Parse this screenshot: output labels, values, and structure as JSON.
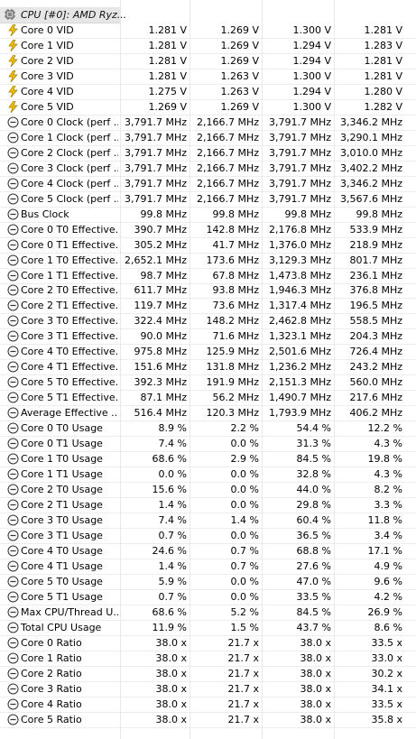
{
  "header": {
    "title": "CPU [#0]: AMD Ryz..."
  },
  "rows": [
    {
      "icon": "bolt",
      "label": "Core 0 VID",
      "values": [
        "1.281 V",
        "1.269 V",
        "1.300 V",
        "1.281 V"
      ]
    },
    {
      "icon": "bolt",
      "label": "Core 1 VID",
      "values": [
        "1.281 V",
        "1.269 V",
        "1.294 V",
        "1.283 V"
      ]
    },
    {
      "icon": "bolt",
      "label": "Core 2 VID",
      "values": [
        "1.281 V",
        "1.269 V",
        "1.294 V",
        "1.281 V"
      ]
    },
    {
      "icon": "bolt",
      "label": "Core 3 VID",
      "values": [
        "1.281 V",
        "1.263 V",
        "1.300 V",
        "1.281 V"
      ]
    },
    {
      "icon": "bolt",
      "label": "Core 4 VID",
      "values": [
        "1.275 V",
        "1.263 V",
        "1.294 V",
        "1.280 V"
      ]
    },
    {
      "icon": "bolt",
      "label": "Core 5 VID",
      "values": [
        "1.269 V",
        "1.269 V",
        "1.300 V",
        "1.282 V"
      ]
    },
    {
      "icon": "gauge",
      "label": "Core 0 Clock (perf ...",
      "values": [
        "3,791.7 MHz",
        "2,166.7 MHz",
        "3,791.7 MHz",
        "3,346.2 MHz"
      ]
    },
    {
      "icon": "gauge",
      "label": "Core 1 Clock (perf ...",
      "values": [
        "3,791.7 MHz",
        "2,166.7 MHz",
        "3,791.7 MHz",
        "3,290.1 MHz"
      ]
    },
    {
      "icon": "gauge",
      "label": "Core 2 Clock (perf ...",
      "values": [
        "3,791.7 MHz",
        "2,166.7 MHz",
        "3,791.7 MHz",
        "3,010.0 MHz"
      ]
    },
    {
      "icon": "gauge",
      "label": "Core 3 Clock (perf ...",
      "values": [
        "3,791.7 MHz",
        "2,166.7 MHz",
        "3,791.7 MHz",
        "3,402.2 MHz"
      ]
    },
    {
      "icon": "gauge",
      "label": "Core 4 Clock (perf ...",
      "values": [
        "3,791.7 MHz",
        "2,166.7 MHz",
        "3,791.7 MHz",
        "3,346.2 MHz"
      ]
    },
    {
      "icon": "gauge",
      "label": "Core 5 Clock (perf ...",
      "values": [
        "3,791.7 MHz",
        "2,166.7 MHz",
        "3,791.7 MHz",
        "3,567.6 MHz"
      ]
    },
    {
      "icon": "gauge",
      "label": "Bus Clock",
      "values": [
        "99.8 MHz",
        "99.8 MHz",
        "99.8 MHz",
        "99.8 MHz"
      ]
    },
    {
      "icon": "gauge",
      "label": "Core 0 T0 Effective...",
      "values": [
        "390.7 MHz",
        "142.8 MHz",
        "2,176.8 MHz",
        "533.9 MHz"
      ]
    },
    {
      "icon": "gauge",
      "label": "Core 0 T1 Effective...",
      "values": [
        "305.2 MHz",
        "41.7 MHz",
        "1,376.0 MHz",
        "218.9 MHz"
      ]
    },
    {
      "icon": "gauge",
      "label": "Core 1 T0 Effective...",
      "values": [
        "2,652.1 MHz",
        "173.6 MHz",
        "3,129.3 MHz",
        "801.7 MHz"
      ]
    },
    {
      "icon": "gauge",
      "label": "Core 1 T1 Effective...",
      "values": [
        "98.7 MHz",
        "67.8 MHz",
        "1,473.8 MHz",
        "236.1 MHz"
      ]
    },
    {
      "icon": "gauge",
      "label": "Core 2 T0 Effective...",
      "values": [
        "611.7 MHz",
        "93.8 MHz",
        "1,946.3 MHz",
        "376.8 MHz"
      ]
    },
    {
      "icon": "gauge",
      "label": "Core 2 T1 Effective...",
      "values": [
        "119.7 MHz",
        "73.6 MHz",
        "1,317.4 MHz",
        "196.5 MHz"
      ]
    },
    {
      "icon": "gauge",
      "label": "Core 3 T0 Effective...",
      "values": [
        "322.4 MHz",
        "148.2 MHz",
        "2,462.8 MHz",
        "558.5 MHz"
      ]
    },
    {
      "icon": "gauge",
      "label": "Core 3 T1 Effective...",
      "values": [
        "90.0 MHz",
        "71.6 MHz",
        "1,323.1 MHz",
        "204.3 MHz"
      ]
    },
    {
      "icon": "gauge",
      "label": "Core 4 T0 Effective...",
      "values": [
        "975.8 MHz",
        "125.9 MHz",
        "2,501.6 MHz",
        "726.4 MHz"
      ]
    },
    {
      "icon": "gauge",
      "label": "Core 4 T1 Effective...",
      "values": [
        "151.6 MHz",
        "131.8 MHz",
        "1,236.2 MHz",
        "243.2 MHz"
      ]
    },
    {
      "icon": "gauge",
      "label": "Core 5 T0 Effective...",
      "values": [
        "392.3 MHz",
        "191.9 MHz",
        "2,151.3 MHz",
        "560.0 MHz"
      ]
    },
    {
      "icon": "gauge",
      "label": "Core 5 T1 Effective...",
      "values": [
        "87.1 MHz",
        "56.2 MHz",
        "1,490.7 MHz",
        "217.6 MHz"
      ]
    },
    {
      "icon": "gauge",
      "label": "Average Effective ...",
      "values": [
        "516.4 MHz",
        "120.3 MHz",
        "1,793.9 MHz",
        "406.2 MHz"
      ]
    },
    {
      "icon": "gauge",
      "label": "Core 0 T0 Usage",
      "values": [
        "8.9 %",
        "2.2 %",
        "54.4 %",
        "12.2 %"
      ]
    },
    {
      "icon": "gauge",
      "label": "Core 0 T1 Usage",
      "values": [
        "7.4 %",
        "0.0 %",
        "31.3 %",
        "4.3 %"
      ]
    },
    {
      "icon": "gauge",
      "label": "Core 1 T0 Usage",
      "values": [
        "68.6 %",
        "2.9 %",
        "84.5 %",
        "19.8 %"
      ]
    },
    {
      "icon": "gauge",
      "label": "Core 1 T1 Usage",
      "values": [
        "0.0 %",
        "0.0 %",
        "32.8 %",
        "4.3 %"
      ]
    },
    {
      "icon": "gauge",
      "label": "Core 2 T0 Usage",
      "values": [
        "15.6 %",
        "0.0 %",
        "44.0 %",
        "8.2 %"
      ]
    },
    {
      "icon": "gauge",
      "label": "Core 2 T1 Usage",
      "values": [
        "1.4 %",
        "0.0 %",
        "29.8 %",
        "3.3 %"
      ]
    },
    {
      "icon": "gauge",
      "label": "Core 3 T0 Usage",
      "values": [
        "7.4 %",
        "1.4 %",
        "60.4 %",
        "11.8 %"
      ]
    },
    {
      "icon": "gauge",
      "label": "Core 3 T1 Usage",
      "values": [
        "0.7 %",
        "0.0 %",
        "36.5 %",
        "3.4 %"
      ]
    },
    {
      "icon": "gauge",
      "label": "Core 4 T0 Usage",
      "values": [
        "24.6 %",
        "0.7 %",
        "68.8 %",
        "17.1 %"
      ]
    },
    {
      "icon": "gauge",
      "label": "Core 4 T1 Usage",
      "values": [
        "1.4 %",
        "0.7 %",
        "27.6 %",
        "4.9 %"
      ]
    },
    {
      "icon": "gauge",
      "label": "Core 5 T0 Usage",
      "values": [
        "5.9 %",
        "0.0 %",
        "47.0 %",
        "9.6 %"
      ]
    },
    {
      "icon": "gauge",
      "label": "Core 5 T1 Usage",
      "values": [
        "0.7 %",
        "0.0 %",
        "33.5 %",
        "4.2 %"
      ]
    },
    {
      "icon": "gauge",
      "label": "Max CPU/Thread U...",
      "values": [
        "68.6 %",
        "5.2 %",
        "84.5 %",
        "26.9 %"
      ]
    },
    {
      "icon": "gauge",
      "label": "Total CPU Usage",
      "values": [
        "11.9 %",
        "1.5 %",
        "43.7 %",
        "8.6 %"
      ]
    },
    {
      "icon": "gauge",
      "label": "Core 0 Ratio",
      "values": [
        "38.0 x",
        "21.7 x",
        "38.0 x",
        "33.5 x"
      ]
    },
    {
      "icon": "gauge",
      "label": "Core 1 Ratio",
      "values": [
        "38.0 x",
        "21.7 x",
        "38.0 x",
        "33.0 x"
      ]
    },
    {
      "icon": "gauge",
      "label": "Core 2 Ratio",
      "values": [
        "38.0 x",
        "21.7 x",
        "38.0 x",
        "30.2 x"
      ]
    },
    {
      "icon": "gauge",
      "label": "Core 3 Ratio",
      "values": [
        "38.0 x",
        "21.7 x",
        "38.0 x",
        "34.1 x"
      ]
    },
    {
      "icon": "gauge",
      "label": "Core 4 Ratio",
      "values": [
        "38.0 x",
        "21.7 x",
        "38.0 x",
        "33.5 x"
      ]
    },
    {
      "icon": "gauge",
      "label": "Core 5 Ratio",
      "values": [
        "38.0 x",
        "21.7 x",
        "38.0 x",
        "35.8 x"
      ]
    }
  ],
  "colors": {
    "bolt_fill": "#f5c400",
    "bolt_stroke": "#a07a00",
    "gauge_stroke": "#333333",
    "header_bg": "#e6e6e6"
  }
}
